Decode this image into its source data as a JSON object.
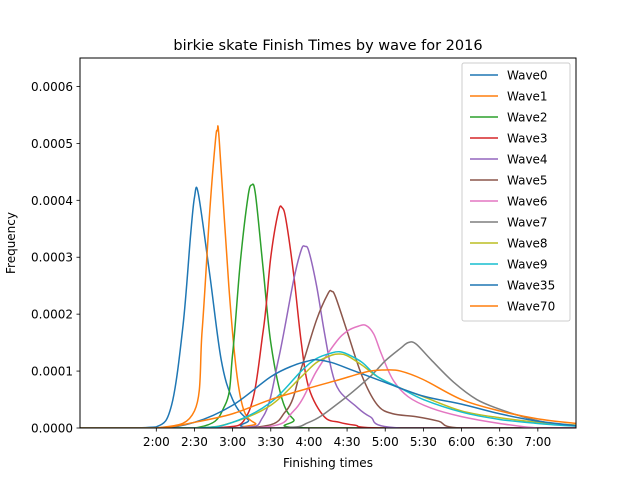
{
  "chart_data": {
    "type": "line",
    "title": "birkie skate Finish Times by wave for 2016",
    "xlabel": "Finishing times",
    "ylabel": "Frequency",
    "x_unit": "seconds",
    "xlim": [
      3600,
      27000
    ],
    "ylim": [
      0,
      0.00065
    ],
    "x_ticks": [
      {
        "value": 7200,
        "label": "2:00"
      },
      {
        "value": 9000,
        "label": "2:30"
      },
      {
        "value": 10800,
        "label": "3:00"
      },
      {
        "value": 12600,
        "label": "3:30"
      },
      {
        "value": 14400,
        "label": "4:00"
      },
      {
        "value": 16200,
        "label": "4:30"
      },
      {
        "value": 18000,
        "label": "5:00"
      },
      {
        "value": 19800,
        "label": "5:30"
      },
      {
        "value": 21600,
        "label": "6:00"
      },
      {
        "value": 23400,
        "label": "6:30"
      },
      {
        "value": 25200,
        "label": "7:00"
      }
    ],
    "y_ticks": [
      {
        "value": 0.0,
        "label": "0.0000"
      },
      {
        "value": 0.0001,
        "label": "0.0001"
      },
      {
        "value": 0.0002,
        "label": "0.0002"
      },
      {
        "value": 0.0003,
        "label": "0.0003"
      },
      {
        "value": 0.0004,
        "label": "0.0004"
      },
      {
        "value": 0.0005,
        "label": "0.0005"
      },
      {
        "value": 0.0006,
        "label": "0.0006"
      }
    ],
    "grid": false,
    "legend_position": "upper-right",
    "series": [
      {
        "name": "Wave0",
        "color": "#1f77b4",
        "x": [
          5400,
          7200,
          7920,
          8460,
          8820,
          9000,
          9180,
          9720,
          10260,
          10800,
          11520,
          12600
        ],
        "y": [
          0.0,
          2e-06,
          4e-05,
          0.00018,
          0.00034,
          0.000405,
          0.000412,
          0.00027,
          0.00012,
          5e-05,
          1.5e-05,
          0.0
        ]
      },
      {
        "name": "Wave1",
        "color": "#ff7f0e",
        "x": [
          7200,
          9000,
          9360,
          9720,
          9990,
          10080,
          10170,
          10620,
          10980,
          11340,
          11880,
          12600
        ],
        "y": [
          0.0,
          3e-05,
          0.00017,
          0.00038,
          0.000505,
          0.000522,
          0.000505,
          0.00025,
          0.0001,
          3e-05,
          8e-06,
          0.0
        ]
      },
      {
        "name": "Wave2",
        "color": "#2ca02c",
        "x": [
          9000,
          10440,
          10800,
          11160,
          11520,
          11700,
          11880,
          12240,
          12600,
          13140,
          13680,
          14400
        ],
        "y": [
          0.0,
          4e-05,
          0.00013,
          0.00029,
          0.000405,
          0.000427,
          0.00041,
          0.00028,
          0.00015,
          5e-05,
          1.5e-05,
          0.0
        ]
      },
      {
        "name": "Wave3",
        "color": "#d62728",
        "x": [
          9900,
          11520,
          12240,
          12600,
          12960,
          13140,
          13320,
          13680,
          14040,
          14400,
          15120,
          15840,
          16560,
          18000
        ],
        "y": [
          0.0,
          2.5e-05,
          0.00017,
          0.0003,
          0.00038,
          0.000387,
          0.000365,
          0.00027,
          0.00015,
          7e-05,
          2e-05,
          1e-05,
          5e-06,
          0.0
        ]
      },
      {
        "name": "Wave4",
        "color": "#9467bd",
        "x": [
          10800,
          12240,
          12960,
          13680,
          14040,
          14220,
          14400,
          14760,
          15120,
          15480,
          15840,
          16560,
          17280,
          18720
        ],
        "y": [
          0.0,
          2e-05,
          0.00012,
          0.00026,
          0.000313,
          0.000319,
          0.00031,
          0.00025,
          0.00017,
          0.0001,
          6.5e-05,
          4e-05,
          2e-05,
          0.0
        ]
      },
      {
        "name": "Wave5",
        "color": "#8c564b",
        "x": [
          11520,
          13320,
          14040,
          14760,
          15300,
          15480,
          15660,
          16200,
          16920,
          17640,
          18360,
          19440,
          20520,
          21600
        ],
        "y": [
          0.0,
          3e-05,
          0.000105,
          0.00019,
          0.000236,
          0.00024,
          0.00023,
          0.00017,
          9e-05,
          4e-05,
          2.5e-05,
          2e-05,
          1.2e-05,
          0.0
        ]
      },
      {
        "name": "Wave6",
        "color": "#e377c2",
        "x": [
          11880,
          13680,
          14760,
          15660,
          16200,
          16740,
          17100,
          17460,
          17820,
          18360,
          19080,
          20160,
          21600,
          23400,
          25200
        ],
        "y": [
          0.0,
          3e-05,
          0.0001,
          0.00015,
          0.00017,
          0.000179,
          0.00018,
          0.000165,
          0.00013,
          8.5e-05,
          5.5e-05,
          3.5e-05,
          2e-05,
          8e-06,
          0.0
        ]
      },
      {
        "name": "Wave7",
        "color": "#7f7f7f",
        "x": [
          12600,
          14400,
          15840,
          17280,
          18000,
          18720,
          19080,
          19440,
          20160,
          21240,
          22320,
          23400,
          24480,
          25560,
          27000
        ],
        "y": [
          0.0,
          1e-05,
          4.5e-05,
          9e-05,
          0.000118,
          0.00014,
          0.00015,
          0.000148,
          0.00012,
          8e-05,
          5e-05,
          3.3e-05,
          2e-05,
          1e-05,
          4e-06
        ]
      },
      {
        "name": "Wave8",
        "color": "#bcbd22",
        "x": [
          9000,
          10800,
          12600,
          14040,
          14760,
          15480,
          15840,
          16200,
          16920,
          17640,
          18720,
          19800,
          21600,
          23400,
          25200,
          27000
        ],
        "y": [
          0.0,
          1e-05,
          4e-05,
          9e-05,
          0.000115,
          0.000128,
          0.00013,
          0.000127,
          0.00011,
          9e-05,
          7e-05,
          5.5e-05,
          3e-05,
          1.8e-05,
          1e-05,
          5e-06
        ]
      },
      {
        "name": "Wave9",
        "color": "#17becf",
        "x": [
          9000,
          10800,
          12600,
          14040,
          14760,
          15480,
          15840,
          16200,
          16920,
          17640,
          18720,
          19800,
          21600,
          23400,
          25200,
          27000
        ],
        "y": [
          0.0,
          1e-05,
          4.5e-05,
          0.0001,
          0.000122,
          0.000132,
          0.000134,
          0.00013,
          0.000115,
          9e-05,
          7e-05,
          5e-05,
          2.8e-05,
          1.5e-05,
          8e-06,
          3e-06
        ]
      },
      {
        "name": "Wave35",
        "color": "#1f77b4",
        "x": [
          7200,
          9000,
          10800,
          12600,
          13680,
          14400,
          14760,
          15480,
          16560,
          18000,
          19800,
          21600,
          23400,
          25200,
          27000
        ],
        "y": [
          0.0,
          1e-05,
          4e-05,
          9e-05,
          0.00011,
          0.000118,
          0.00012,
          0.000115,
          0.0001,
          8e-05,
          5.6e-05,
          4.2e-05,
          2.5e-05,
          1.2e-05,
          4e-06
        ]
      },
      {
        "name": "Wave70",
        "color": "#ff7f0e",
        "x": [
          7200,
          9000,
          10800,
          12600,
          14400,
          15840,
          16560,
          17280,
          18000,
          18720,
          19800,
          21600,
          23400,
          25200,
          27000
        ],
        "y": [
          0.0,
          1e-05,
          2.5e-05,
          5e-05,
          7e-05,
          8.5e-05,
          9.3e-05,
          0.0001,
          0.000102,
          0.0001,
          8.5e-05,
          5e-05,
          3e-05,
          1.6e-05,
          8e-06
        ]
      }
    ]
  }
}
